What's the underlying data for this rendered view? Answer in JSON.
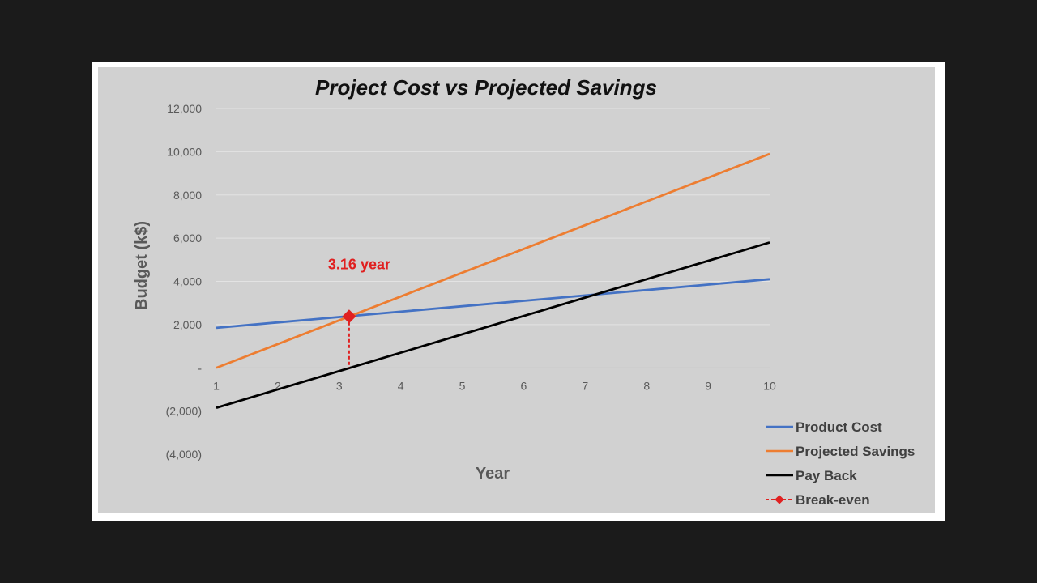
{
  "chart_data": {
    "type": "line",
    "title": "Project Cost vs Projected Savings",
    "xlabel": "Year",
    "ylabel": "Budget (k$)",
    "x": [
      1,
      2,
      3,
      4,
      5,
      6,
      7,
      8,
      9,
      10
    ],
    "xlim": [
      1,
      10
    ],
    "ylim": [
      -4000,
      12000
    ],
    "y_ticks": [
      {
        "value": 12000,
        "label": "12,000"
      },
      {
        "value": 10000,
        "label": "10,000"
      },
      {
        "value": 8000,
        "label": "8,000"
      },
      {
        "value": 6000,
        "label": "6,000"
      },
      {
        "value": 4000,
        "label": "4,000"
      },
      {
        "value": 2000,
        "label": "2,000"
      },
      {
        "value": 0,
        "label": "-"
      },
      {
        "value": -2000,
        "label": "(2,000)"
      },
      {
        "value": -4000,
        "label": "(4,000)"
      }
    ],
    "x_tick_labels": [
      "1",
      "2",
      "3",
      "4",
      "5",
      "6",
      "7",
      "8",
      "9",
      "10"
    ],
    "grid": true,
    "legend_position": "bottom-right",
    "series": [
      {
        "name": "Product Cost",
        "color": "#4472c4",
        "values": [
          1850,
          2100,
          2350,
          2600,
          2850,
          3100,
          3350,
          3600,
          3850,
          4100
        ]
      },
      {
        "name": "Projected Savings",
        "color": "#ed7d31",
        "values": [
          0,
          1100,
          2200,
          3300,
          4400,
          5500,
          6600,
          7700,
          8800,
          9900
        ]
      },
      {
        "name": "Pay Back",
        "color": "#000000",
        "values": [
          -1850,
          -1000,
          -150,
          700,
          1550,
          2400,
          3250,
          4100,
          4950,
          5800
        ]
      }
    ],
    "break_even": {
      "name": "Break-even",
      "color": "#e02020",
      "x": 3.16,
      "y": 2380,
      "annotation": "3.16 year"
    }
  }
}
